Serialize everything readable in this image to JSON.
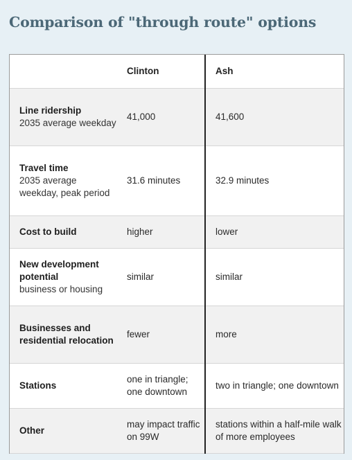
{
  "title": "Comparison of \"through route\" options",
  "header": {
    "col1": "",
    "col2": "Clinton",
    "col3": "Ash"
  },
  "rows": [
    {
      "label": "Line ridership",
      "sub": "2035 average weekday",
      "clinton": "41,000",
      "ash": "41,600"
    },
    {
      "label": "Travel time",
      "sub": "2035 average weekday, peak period",
      "clinton": "31.6 minutes",
      "ash": "32.9 minutes"
    },
    {
      "label": "Cost to build",
      "sub": "",
      "clinton": "higher",
      "ash": "lower"
    },
    {
      "label": "New development potential",
      "sub": "business or housing",
      "clinton": "similar",
      "ash": "similar"
    },
    {
      "label": "Businesses and residential relocation",
      "sub": "",
      "clinton": "fewer",
      "ash": "more"
    },
    {
      "label": "Stations",
      "sub": "",
      "clinton": "one in triangle; one downtown",
      "ash": "two in triangle; one downtown"
    },
    {
      "label": "Other",
      "sub": "",
      "clinton": "may impact traffic on 99W",
      "ash": "stations within a half-mile walk of more employees"
    }
  ],
  "colors": {
    "background": "#e7f0f5",
    "title": "#4c6877",
    "row_shade": "#f1f1f1",
    "divider": "#222222"
  }
}
